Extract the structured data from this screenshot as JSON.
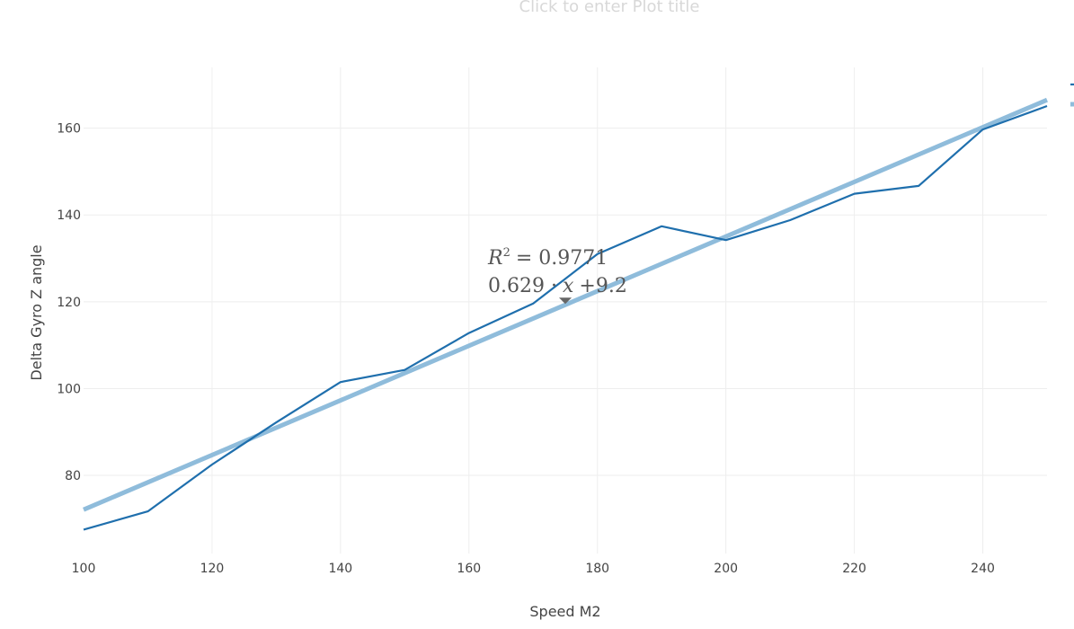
{
  "chart_data": {
    "type": "line",
    "title": "Click to enter Plot title",
    "xlabel": "Speed M2",
    "ylabel": "Delta Gyro Z angle",
    "xlim": [
      100,
      250
    ],
    "ylim": [
      62,
      174
    ],
    "xticks": [
      100,
      120,
      140,
      160,
      180,
      200,
      220,
      240
    ],
    "yticks": [
      80,
      100,
      120,
      140,
      160
    ],
    "grid": true,
    "legend_placement": "top-right (clipped)",
    "series": [
      {
        "color": "#1f6fad",
        "x": [
          100,
          110,
          120,
          130,
          140,
          150,
          160,
          170,
          180,
          190,
          200,
          210,
          220,
          230,
          240,
          250
        ],
        "values": [
          67.5,
          71.7,
          82.5,
          92.2,
          101.5,
          104.3,
          112.8,
          119.6,
          131.0,
          137.4,
          134.2,
          138.8,
          144.9,
          146.7,
          159.7,
          165.1
        ]
      },
      {
        "color": "#8fbcdb",
        "x": [
          100,
          250
        ],
        "values": [
          72.1,
          166.5
        ]
      }
    ],
    "annotation": {
      "x": 175,
      "y": 119.5,
      "r2_label": "R",
      "r2_sup": "2",
      "r2_value": "= 0.9771",
      "eq_coef": "0.629 ·",
      "eq_var": "x",
      "eq_const": "+9.2"
    }
  }
}
